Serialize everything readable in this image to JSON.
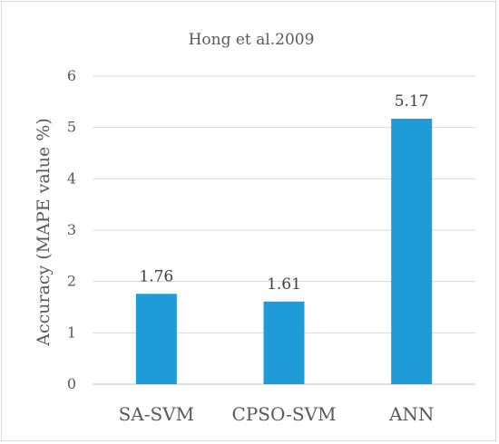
{
  "chart_data": {
    "type": "bar",
    "title": "Hong et al.2009",
    "xlabel": "",
    "ylabel": "Accuracy (MAPE value %)",
    "categories": [
      "SA-SVM",
      "CPSO-SVM",
      "ANN"
    ],
    "values": [
      1.76,
      1.61,
      5.17
    ],
    "data_labels": [
      "1.76",
      "1.61",
      "5.17"
    ],
    "ylim": [
      0,
      6
    ],
    "yticks": [
      "0",
      "1",
      "2",
      "3",
      "4",
      "5",
      "6"
    ],
    "grid": true,
    "legend": "none",
    "bar_color": "#1f9bd8"
  }
}
